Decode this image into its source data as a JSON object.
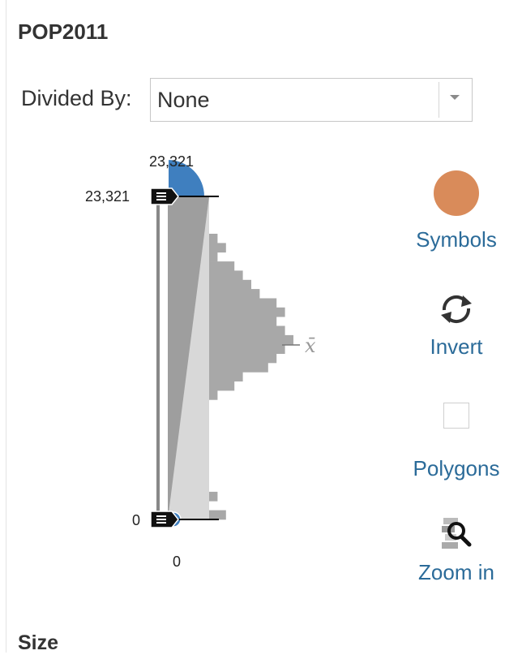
{
  "panel": {
    "field_name": "POP2011",
    "divided_by_label": "Divided By:",
    "divided_by_value": "None",
    "size_heading": "Size"
  },
  "slider": {
    "max_label_top": "23,321",
    "max_handle_label": "23,321",
    "min_handle_label": "0",
    "min_label_bottom": "0",
    "mean_symbol": "x̄",
    "histogram_bins": [
      1,
      2,
      1,
      3,
      4,
      5,
      6,
      8,
      9,
      8,
      9,
      10,
      9,
      8,
      7,
      4,
      3,
      1,
      0,
      0,
      0,
      0,
      0,
      0,
      0,
      0,
      0,
      0,
      1,
      0,
      2
    ]
  },
  "tools": {
    "symbols_label": "Symbols",
    "symbols_color": "#d98b5a",
    "invert_label": "Invert",
    "polygons_label": "Polygons",
    "polygons_checked": false,
    "zoom_label": "Zoom in"
  },
  "colors": {
    "accent": "#2b6b99",
    "symbol_blue": "#3f7fbf"
  }
}
